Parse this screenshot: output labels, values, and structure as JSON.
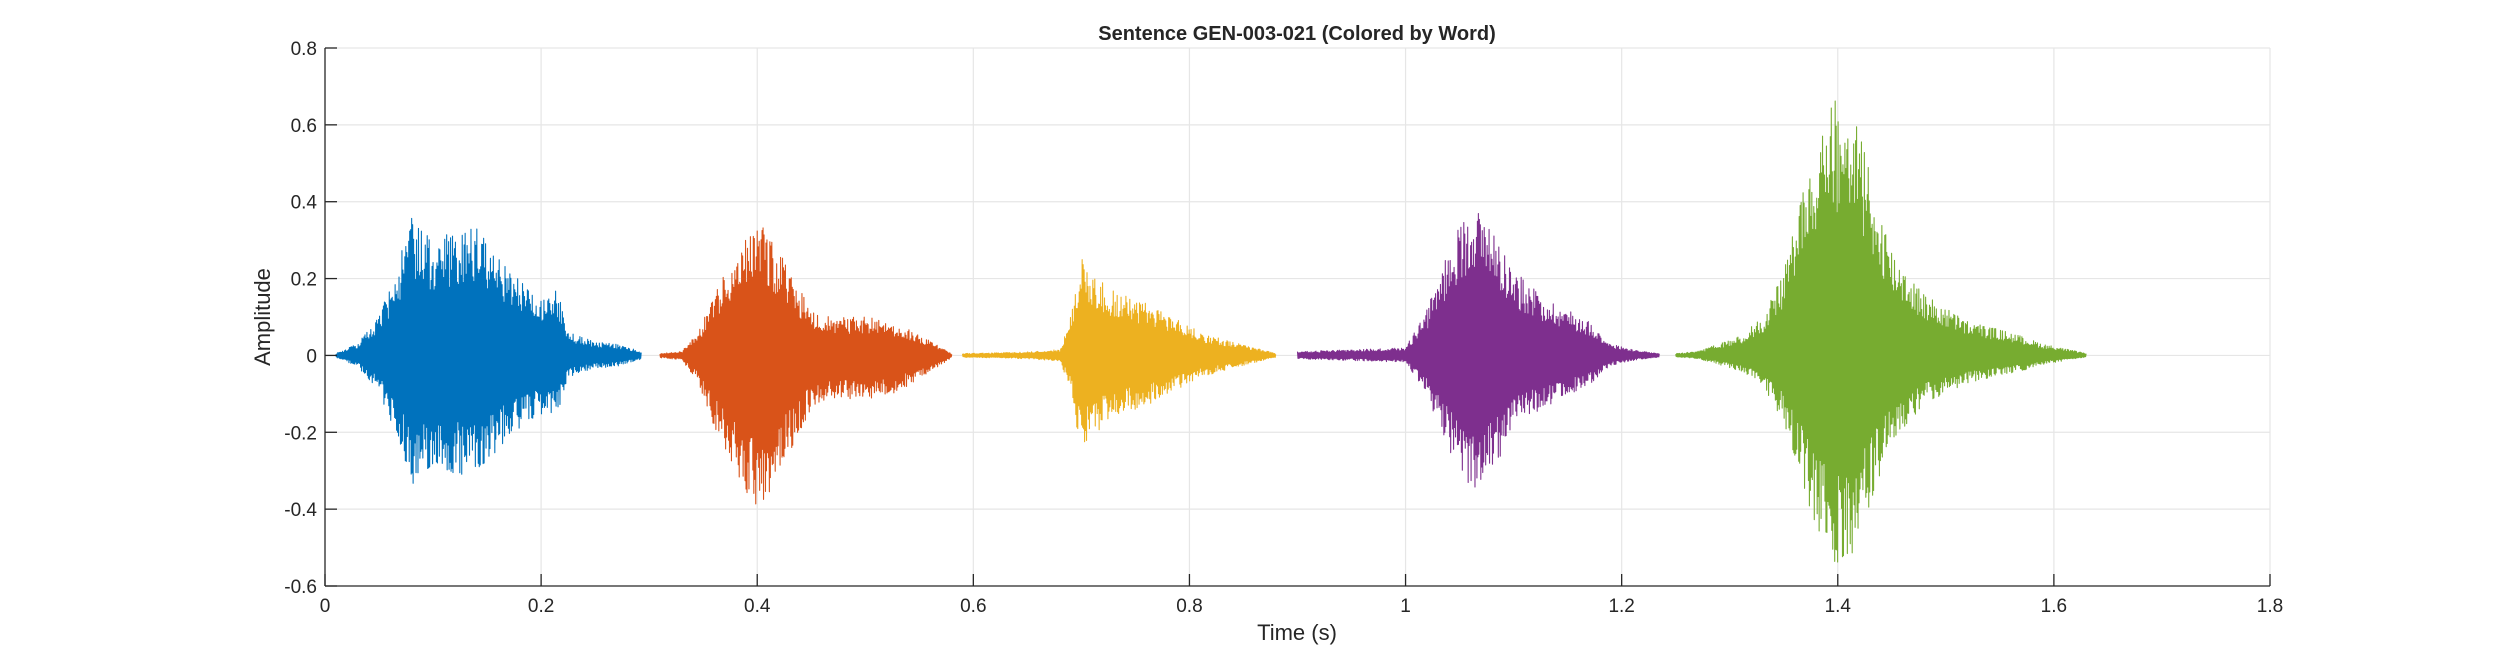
{
  "chart_data": {
    "type": "line",
    "title": "Sentence GEN-003-021 (Colored by Word)",
    "xlabel": "Time (s)",
    "ylabel": "Amplitude",
    "xlim": [
      0,
      1.8
    ],
    "ylim": [
      -0.6,
      0.8
    ],
    "xticks": [
      0,
      0.2,
      0.4,
      0.6,
      0.8,
      1,
      1.2,
      1.4,
      1.6,
      1.8
    ],
    "xtick_labels": [
      "0",
      "0.2",
      "0.4",
      "0.6",
      "0.8",
      "1",
      "1.2",
      "1.4",
      "1.6",
      "1.8"
    ],
    "yticks": [
      -0.6,
      -0.4,
      -0.2,
      0,
      0.2,
      0.4,
      0.6,
      0.8
    ],
    "ytick_labels": [
      "-0.6",
      "-0.4",
      "-0.2",
      "0",
      "0.2",
      "0.4",
      "0.6",
      "0.8"
    ],
    "grid": true,
    "series": [
      {
        "color": "#0072BD",
        "t_start": 0.01,
        "t_end": 0.293,
        "envelope": [
          [
            0.01,
            0.005
          ],
          [
            0.03,
            0.03
          ],
          [
            0.05,
            0.1
          ],
          [
            0.065,
            0.22
          ],
          [
            0.08,
            0.36
          ],
          [
            0.1,
            0.3
          ],
          [
            0.125,
            0.33
          ],
          [
            0.14,
            0.34
          ],
          [
            0.16,
            0.26
          ],
          [
            0.18,
            0.2
          ],
          [
            0.2,
            0.16
          ],
          [
            0.215,
            0.17
          ],
          [
            0.225,
            0.06
          ],
          [
            0.25,
            0.035
          ],
          [
            0.27,
            0.03
          ],
          [
            0.293,
            0.01
          ]
        ],
        "neg_scale": 0.95
      },
      {
        "color": "#D95319",
        "t_start": 0.31,
        "t_end": 0.58,
        "envelope": [
          [
            0.31,
            0.005
          ],
          [
            0.33,
            0.01
          ],
          [
            0.345,
            0.06
          ],
          [
            0.36,
            0.16
          ],
          [
            0.38,
            0.27
          ],
          [
            0.4,
            0.36
          ],
          [
            0.415,
            0.3
          ],
          [
            0.43,
            0.22
          ],
          [
            0.45,
            0.12
          ],
          [
            0.47,
            0.1
          ],
          [
            0.5,
            0.1
          ],
          [
            0.525,
            0.09
          ],
          [
            0.545,
            0.06
          ],
          [
            0.565,
            0.03
          ],
          [
            0.58,
            0.005
          ]
        ],
        "neg_scale": 1.15
      },
      {
        "color": "#EDB120",
        "t_start": 0.59,
        "t_end": 0.88,
        "envelope": [
          [
            0.59,
            0.005
          ],
          [
            0.64,
            0.008
          ],
          [
            0.68,
            0.015
          ],
          [
            0.69,
            0.1
          ],
          [
            0.7,
            0.27
          ],
          [
            0.71,
            0.22
          ],
          [
            0.73,
            0.17
          ],
          [
            0.75,
            0.15
          ],
          [
            0.78,
            0.11
          ],
          [
            0.81,
            0.06
          ],
          [
            0.84,
            0.035
          ],
          [
            0.86,
            0.02
          ],
          [
            0.88,
            0.005
          ]
        ],
        "neg_scale": 0.95
      },
      {
        "color": "#7E2F8E",
        "t_start": 0.9,
        "t_end": 1.235,
        "envelope": [
          [
            0.9,
            0.01
          ],
          [
            0.95,
            0.015
          ],
          [
            1.0,
            0.02
          ],
          [
            1.02,
            0.12
          ],
          [
            1.04,
            0.28
          ],
          [
            1.06,
            0.4
          ],
          [
            1.08,
            0.35
          ],
          [
            1.1,
            0.22
          ],
          [
            1.13,
            0.15
          ],
          [
            1.15,
            0.12
          ],
          [
            1.17,
            0.09
          ],
          [
            1.19,
            0.03
          ],
          [
            1.215,
            0.012
          ],
          [
            1.235,
            0.005
          ]
        ],
        "neg_scale": 0.88
      },
      {
        "color": "#77AC30",
        "t_start": 1.25,
        "t_end": 1.63,
        "envelope": [
          [
            1.25,
            0.005
          ],
          [
            1.27,
            0.01
          ],
          [
            1.29,
            0.03
          ],
          [
            1.31,
            0.05
          ],
          [
            1.33,
            0.1
          ],
          [
            1.35,
            0.22
          ],
          [
            1.37,
            0.45
          ],
          [
            1.39,
            0.66
          ],
          [
            1.41,
            0.69
          ],
          [
            1.43,
            0.48
          ],
          [
            1.45,
            0.28
          ],
          [
            1.48,
            0.16
          ],
          [
            1.52,
            0.09
          ],
          [
            1.56,
            0.06
          ],
          [
            1.59,
            0.03
          ],
          [
            1.63,
            0.005
          ]
        ],
        "neg_scale": 0.8
      }
    ]
  }
}
